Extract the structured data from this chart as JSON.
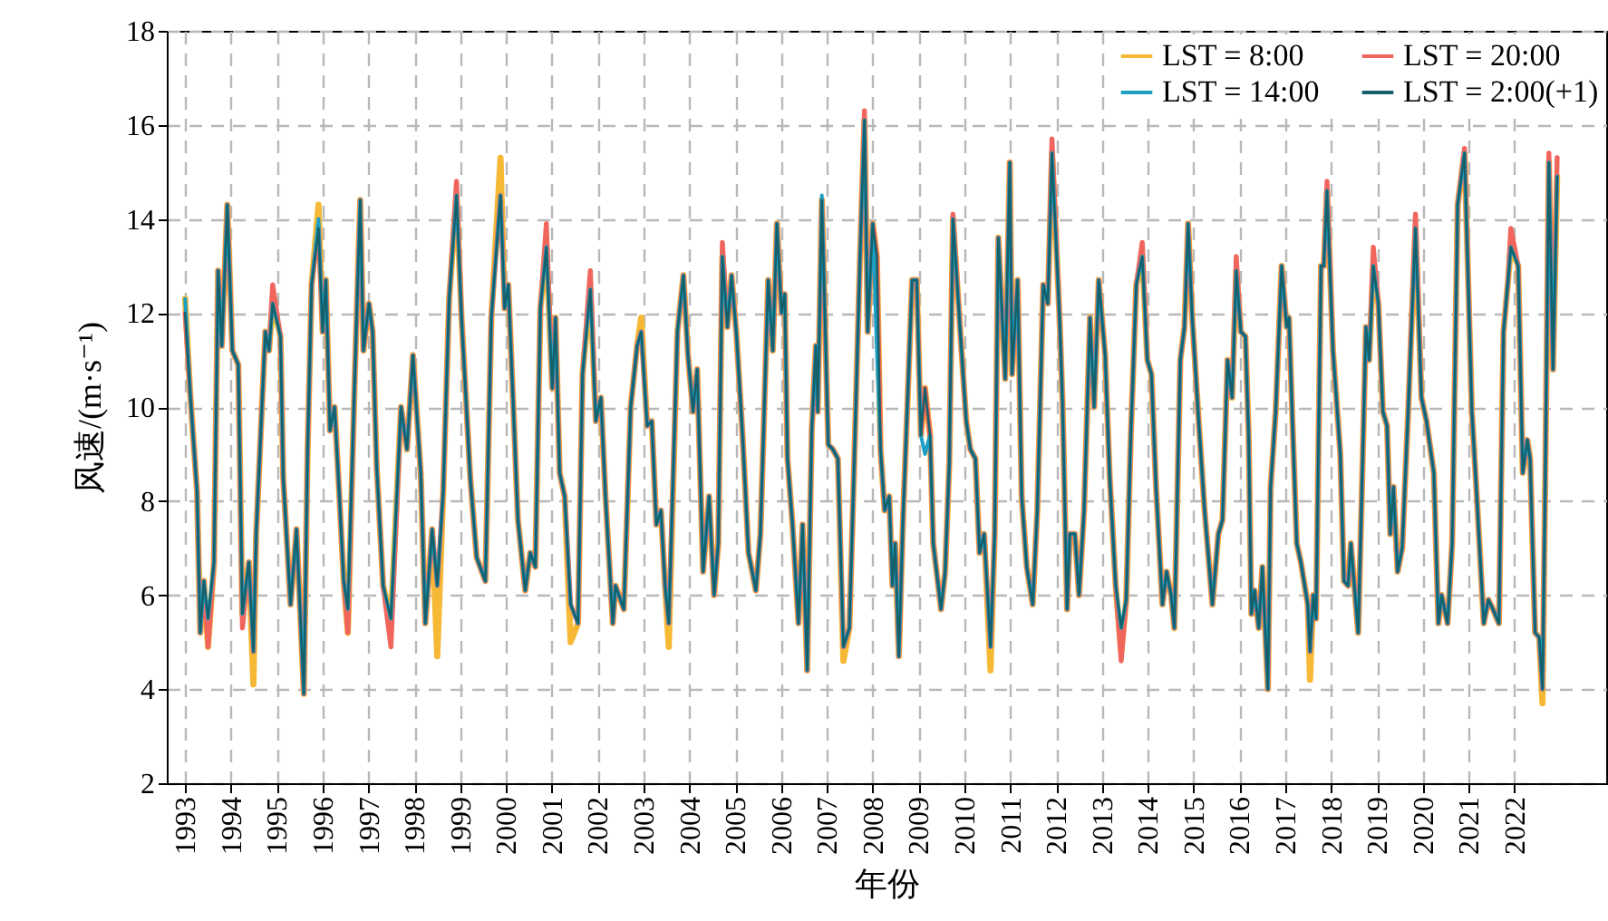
{
  "chart_data": {
    "type": "line",
    "xlabel": "年份",
    "ylabel": "风速/(m·s⁻¹)",
    "xlim": [
      1992.6,
      2024.0
    ],
    "xticks": [
      1993,
      1994,
      1995,
      1996,
      1997,
      1998,
      1999,
      2000,
      2001,
      2002,
      2003,
      2004,
      2005,
      2006,
      2007,
      2008,
      2009,
      2010,
      2011,
      2012,
      2013,
      2014,
      2015,
      2016,
      2017,
      2018,
      2019,
      2020,
      2021,
      2022
    ],
    "ylim": [
      2,
      18
    ],
    "yticks": [
      2,
      4,
      6,
      8,
      10,
      12,
      14,
      16,
      18
    ],
    "grid": true,
    "legend": "top right",
    "x": [
      1993.0,
      1993.11,
      1993.26,
      1993.33,
      1993.41,
      1993.5,
      1993.63,
      1993.72,
      1993.8,
      1993.92,
      1994.03,
      1994.16,
      1994.25,
      1994.39,
      1994.49,
      1994.55,
      1994.75,
      1994.83,
      1994.91,
      1995.08,
      1995.14,
      1995.3,
      1995.43,
      1995.59,
      1995.67,
      1995.76,
      1995.91,
      1996.0,
      1996.07,
      1996.16,
      1996.26,
      1996.36,
      1996.46,
      1996.55,
      1996.7,
      1996.82,
      1996.89,
      1997.01,
      1997.09,
      1997.18,
      1997.32,
      1997.49,
      1997.71,
      1997.84,
      1997.97,
      1998.14,
      1998.24,
      1998.39,
      1998.5,
      1998.63,
      1998.76,
      1998.92,
      1999.03,
      1999.22,
      1999.36,
      1999.55,
      1999.68,
      1999.88,
      1999.97,
      2000.05,
      2000.16,
      2000.26,
      2000.42,
      2000.53,
      2000.64,
      2000.75,
      2000.88,
      2001.01,
      2001.08,
      2001.17,
      2001.28,
      2001.41,
      2001.57,
      2001.67,
      2001.84,
      2001.96,
      2002.07,
      2002.17,
      2002.33,
      2002.39,
      2002.57,
      2002.72,
      2002.86,
      2002.95,
      2003.08,
      2003.18,
      2003.28,
      2003.38,
      2003.47,
      2003.55,
      2003.74,
      2003.87,
      2003.97,
      2004.08,
      2004.17,
      2004.3,
      2004.43,
      2004.54,
      2004.63,
      2004.72,
      2004.83,
      2004.92,
      2005.03,
      2005.16,
      2005.29,
      2005.45,
      2005.55,
      2005.72,
      2005.82,
      2005.91,
      2006.01,
      2006.08,
      2006.14,
      2006.25,
      2006.38,
      2006.47,
      2006.57,
      2006.67,
      2006.76,
      2006.8,
      2006.89,
      2007.03,
      2007.13,
      2007.24,
      2007.36,
      2007.49,
      2007.59,
      2007.72,
      2007.82,
      2007.89,
      2008.0,
      2008.09,
      2008.17,
      2008.26,
      2008.36,
      2008.43,
      2008.49,
      2008.57,
      2008.66,
      2008.86,
      2008.96,
      2009.05,
      2009.14,
      2009.25,
      2009.32,
      2009.49,
      2009.58,
      2009.67,
      2009.75,
      2009.91,
      2010.04,
      2010.13,
      2010.24,
      2010.33,
      2010.43,
      2010.57,
      2010.66,
      2010.74,
      2010.89,
      2010.99,
      2011.04,
      2011.16,
      2011.25,
      2011.36,
      2011.49,
      2011.59,
      2011.72,
      2011.82,
      2011.91,
      2012.08,
      2012.14,
      2012.24,
      2012.3,
      2012.41,
      2012.5,
      2012.61,
      2012.74,
      2012.83,
      2012.93,
      2013.07,
      2013.17,
      2013.3,
      2013.42,
      2013.53,
      2013.63,
      2013.75,
      2013.88,
      2013.99,
      2014.08,
      2014.18,
      2014.32,
      2014.41,
      2014.51,
      2014.58,
      2014.71,
      2014.8,
      2014.88,
      2014.97,
      2015.11,
      2015.24,
      2015.41,
      2015.54,
      2015.63,
      2015.74,
      2015.84,
      2015.93,
      2016.03,
      2016.13,
      2016.2,
      2016.26,
      2016.33,
      2016.42,
      2016.5,
      2016.62,
      2016.68,
      2016.79,
      2016.92,
      2017.03,
      2017.08,
      2017.16,
      2017.25,
      2017.34,
      2017.49,
      2017.54,
      2017.61,
      2017.67,
      2017.78,
      2017.84,
      2017.91,
      2018.04,
      2018.2,
      2018.28,
      2018.37,
      2018.43,
      2018.59,
      2018.67,
      2018.76,
      2018.83,
      2018.92,
      2019.03,
      2019.13,
      2019.22,
      2019.29,
      2019.36,
      2019.45,
      2019.55,
      2019.68,
      2019.84,
      2019.97,
      2020.08,
      2020.24,
      2020.34,
      2020.41,
      2020.54,
      2020.64,
      2020.76,
      2020.91,
      2021.07,
      2021.16,
      2021.33,
      2021.43,
      2021.53,
      2021.66,
      2021.76,
      2021.86,
      2021.92,
      2022.08,
      2022.18,
      2022.28,
      2022.34,
      2022.45,
      2022.54,
      2022.61,
      2022.67,
      2022.75,
      2022.84,
      2022.93
    ],
    "series": [
      {
        "name": "LST = 8:00",
        "color": "#f6b936",
        "values": [
          12.3,
          10.3,
          8.2,
          5.2,
          6.3,
          4.9,
          6.7,
          12.9,
          11.3,
          14.3,
          11.2,
          10.9,
          5.6,
          6.7,
          4.1,
          7.3,
          11.6,
          11.2,
          12.2,
          11.5,
          8.5,
          5.8,
          7.4,
          3.9,
          9.0,
          12.6,
          14.3,
          11.6,
          12.7,
          9.5,
          10.0,
          8.2,
          6.3,
          5.2,
          10.6,
          14.4,
          11.2,
          12.2,
          11.6,
          8.7,
          6.2,
          5.5,
          10.0,
          9.1,
          11.1,
          8.6,
          5.4,
          7.4,
          4.7,
          8.2,
          12.3,
          14.5,
          11.9,
          8.5,
          6.8,
          6.3,
          11.9,
          15.3,
          12.1,
          12.6,
          10.0,
          7.6,
          6.1,
          6.9,
          6.6,
          12.1,
          13.4,
          10.4,
          11.9,
          8.6,
          8.1,
          5.0,
          5.4,
          10.7,
          12.5,
          9.7,
          10.2,
          8.1,
          5.4,
          6.2,
          5.7,
          10.0,
          11.3,
          11.9,
          9.6,
          9.7,
          7.5,
          7.8,
          6.2,
          4.9,
          11.6,
          12.8,
          11.1,
          9.9,
          10.8,
          6.5,
          8.1,
          6.0,
          7.1,
          13.2,
          11.7,
          12.8,
          11.5,
          9.4,
          6.9,
          6.1,
          7.3,
          12.7,
          11.2,
          13.9,
          12.0,
          12.4,
          8.9,
          7.5,
          5.4,
          7.5,
          4.4,
          9.5,
          11.3,
          9.9,
          14.4,
          9.2,
          9.1,
          8.9,
          4.6,
          5.3,
          8.6,
          13.1,
          16.1,
          11.6,
          13.9,
          13.2,
          9.1,
          7.8,
          8.1,
          6.2,
          7.1,
          4.7,
          7.6,
          12.7,
          12.7,
          9.4,
          10.4,
          9.4,
          7.1,
          5.7,
          6.5,
          8.8,
          14.0,
          11.6,
          9.7,
          9.1,
          8.9,
          6.9,
          7.3,
          4.4,
          7.3,
          13.6,
          10.6,
          15.2,
          10.7,
          12.7,
          8.1,
          6.6,
          5.8,
          7.8,
          12.6,
          12.2,
          15.4,
          11.8,
          10.1,
          5.7,
          7.3,
          7.3,
          6.0,
          7.8,
          11.9,
          10.0,
          12.7,
          11.1,
          8.5,
          6.2,
          4.8,
          5.9,
          9.4,
          12.6,
          13.2,
          11.0,
          10.7,
          8.3,
          5.8,
          6.5,
          6.0,
          5.3,
          11.0,
          11.7,
          13.9,
          11.9,
          9.7,
          7.8,
          5.8,
          7.3,
          7.6,
          11.0,
          10.2,
          12.9,
          11.6,
          11.5,
          9.4,
          5.6,
          6.1,
          5.3,
          6.6,
          4.0,
          8.3,
          9.9,
          13.0,
          11.7,
          11.9,
          9.6,
          7.1,
          6.7,
          5.8,
          4.2,
          6.0,
          5.5,
          13.0,
          13.0,
          14.6,
          11.2,
          9.0,
          6.3,
          6.2,
          7.1,
          5.2,
          8.2,
          11.7,
          11.0,
          13.0,
          12.2,
          9.9,
          9.6,
          7.3,
          8.3,
          6.5,
          7.0,
          9.9,
          13.8,
          10.2,
          9.7,
          8.6,
          5.4,
          6.0,
          5.4,
          7.1,
          14.3,
          15.4,
          9.9,
          8.4,
          5.4,
          5.9,
          5.7,
          5.4,
          11.6,
          12.7,
          13.4,
          13.0,
          8.6,
          9.3,
          8.9,
          5.2,
          5.1,
          3.7,
          8.4,
          15.2,
          10.8,
          14.9
        ]
      },
      {
        "name": "LST = 20:00",
        "color": "#f0665c",
        "values": [
          12.0,
          10.3,
          8.2,
          5.2,
          6.3,
          4.9,
          6.7,
          12.9,
          11.3,
          14.3,
          11.2,
          10.9,
          5.3,
          6.7,
          4.8,
          7.3,
          11.6,
          11.2,
          12.6,
          11.5,
          8.5,
          5.8,
          7.4,
          3.9,
          9.0,
          12.6,
          13.8,
          11.6,
          12.7,
          9.5,
          10.0,
          8.2,
          6.3,
          5.2,
          10.6,
          14.4,
          11.2,
          12.2,
          11.6,
          8.7,
          6.2,
          4.9,
          10.0,
          9.1,
          11.1,
          8.6,
          5.4,
          7.4,
          6.2,
          8.2,
          12.3,
          14.8,
          11.9,
          8.5,
          6.8,
          6.3,
          11.9,
          14.5,
          12.1,
          12.6,
          10.0,
          7.6,
          6.1,
          6.9,
          6.6,
          12.1,
          13.9,
          10.4,
          11.9,
          8.6,
          8.1,
          5.8,
          5.4,
          10.7,
          12.9,
          9.7,
          10.2,
          8.1,
          5.4,
          6.2,
          5.7,
          10.0,
          11.3,
          11.6,
          9.6,
          9.7,
          7.5,
          7.8,
          6.2,
          5.4,
          11.6,
          12.8,
          11.1,
          9.9,
          10.8,
          6.5,
          8.1,
          6.0,
          7.1,
          13.5,
          11.7,
          12.8,
          11.5,
          9.4,
          6.9,
          6.1,
          7.3,
          12.7,
          11.2,
          13.9,
          12.0,
          12.4,
          8.9,
          7.5,
          5.4,
          7.5,
          4.4,
          9.5,
          11.3,
          9.9,
          14.4,
          9.2,
          9.1,
          8.9,
          4.9,
          5.3,
          8.6,
          13.1,
          16.3,
          11.6,
          13.9,
          13.2,
          9.1,
          7.8,
          8.1,
          6.2,
          7.1,
          4.7,
          7.6,
          12.7,
          12.7,
          9.4,
          10.4,
          9.4,
          7.1,
          5.7,
          6.5,
          8.8,
          14.1,
          11.6,
          9.7,
          9.1,
          8.9,
          6.9,
          7.3,
          4.9,
          7.3,
          13.6,
          10.6,
          15.2,
          10.7,
          12.7,
          8.1,
          6.6,
          5.8,
          7.8,
          12.6,
          12.2,
          15.7,
          11.8,
          10.1,
          5.7,
          7.3,
          7.3,
          6.0,
          7.8,
          11.9,
          10.0,
          12.7,
          11.1,
          8.5,
          6.2,
          4.6,
          5.9,
          9.4,
          12.6,
          13.5,
          11.0,
          10.7,
          8.3,
          5.8,
          6.5,
          6.0,
          5.3,
          11.0,
          11.7,
          13.9,
          11.9,
          9.7,
          7.8,
          5.8,
          7.3,
          7.6,
          11.0,
          10.2,
          13.2,
          11.6,
          11.5,
          9.4,
          5.6,
          6.1,
          5.3,
          6.6,
          4.0,
          8.3,
          9.9,
          13.0,
          11.7,
          11.9,
          9.6,
          7.1,
          6.7,
          5.8,
          4.8,
          6.0,
          5.5,
          13.0,
          13.0,
          14.8,
          11.2,
          9.0,
          6.3,
          6.2,
          7.1,
          5.2,
          8.2,
          11.7,
          11.0,
          13.4,
          12.2,
          9.9,
          9.6,
          7.3,
          8.3,
          6.5,
          7.0,
          9.9,
          14.1,
          10.2,
          9.7,
          8.6,
          5.4,
          6.0,
          5.4,
          7.1,
          14.3,
          15.5,
          9.9,
          8.4,
          5.4,
          5.9,
          5.7,
          5.4,
          11.6,
          12.7,
          13.8,
          13.0,
          8.6,
          9.3,
          8.9,
          5.2,
          5.1,
          4.0,
          8.4,
          15.4,
          10.8,
          15.3
        ]
      },
      {
        "name": "LST = 14:00",
        "color": "#1e9fc4",
        "values": [
          12.3,
          10.3,
          8.2,
          5.2,
          6.3,
          5.5,
          6.7,
          12.9,
          11.3,
          14.3,
          11.2,
          10.9,
          5.6,
          6.7,
          4.8,
          7.3,
          11.6,
          11.2,
          12.2,
          11.5,
          8.5,
          5.8,
          7.4,
          3.9,
          9.0,
          12.6,
          14.0,
          11.6,
          12.7,
          9.5,
          10.0,
          8.2,
          6.3,
          5.7,
          10.6,
          14.4,
          11.2,
          12.2,
          11.6,
          8.7,
          6.2,
          5.5,
          10.0,
          9.1,
          11.1,
          8.6,
          5.4,
          7.4,
          6.2,
          8.2,
          12.3,
          14.5,
          11.9,
          8.5,
          6.8,
          6.3,
          11.9,
          14.5,
          12.1,
          12.6,
          10.0,
          7.6,
          6.1,
          6.9,
          6.6,
          12.1,
          13.4,
          10.4,
          11.9,
          8.6,
          8.1,
          5.8,
          5.4,
          10.7,
          12.5,
          9.7,
          10.2,
          8.1,
          5.4,
          6.2,
          5.7,
          10.0,
          11.3,
          11.6,
          9.6,
          9.7,
          7.5,
          7.8,
          6.2,
          5.4,
          11.6,
          12.8,
          11.1,
          9.9,
          10.8,
          6.5,
          8.1,
          6.0,
          7.1,
          13.2,
          11.7,
          12.8,
          11.5,
          9.4,
          6.9,
          6.1,
          7.3,
          12.7,
          11.2,
          13.9,
          12.0,
          12.4,
          8.9,
          7.5,
          5.4,
          7.5,
          4.4,
          9.5,
          11.3,
          9.9,
          14.5,
          9.2,
          9.1,
          8.9,
          4.9,
          5.3,
          8.6,
          13.1,
          16.1,
          11.6,
          13.9,
          11.2,
          9.1,
          7.8,
          8.1,
          6.2,
          7.1,
          4.7,
          7.6,
          12.7,
          12.7,
          9.4,
          9.0,
          9.4,
          7.1,
          5.7,
          6.5,
          8.8,
          14.0,
          11.6,
          9.7,
          9.1,
          8.9,
          6.9,
          7.3,
          4.9,
          7.3,
          13.6,
          10.6,
          15.2,
          10.7,
          12.7,
          8.1,
          6.6,
          5.8,
          7.8,
          12.6,
          12.2,
          15.4,
          11.8,
          10.1,
          5.7,
          7.3,
          7.3,
          6.0,
          7.8,
          11.9,
          10.0,
          12.7,
          11.1,
          8.5,
          6.2,
          5.3,
          5.9,
          9.4,
          12.6,
          13.2,
          11.0,
          10.7,
          8.3,
          5.8,
          6.5,
          6.0,
          5.3,
          11.0,
          11.7,
          13.9,
          11.9,
          9.7,
          7.8,
          5.8,
          7.3,
          7.6,
          11.0,
          10.2,
          12.9,
          11.6,
          11.5,
          9.4,
          5.6,
          6.1,
          5.3,
          6.6,
          4.0,
          8.3,
          9.9,
          13.0,
          11.7,
          11.9,
          9.6,
          7.1,
          6.7,
          5.8,
          4.8,
          6.0,
          5.5,
          13.0,
          13.0,
          14.6,
          11.2,
          9.0,
          6.3,
          6.2,
          7.1,
          5.2,
          8.2,
          11.7,
          11.0,
          13.0,
          12.2,
          9.9,
          9.6,
          7.3,
          8.3,
          6.5,
          7.0,
          9.9,
          13.8,
          10.2,
          9.7,
          8.6,
          5.4,
          6.0,
          5.4,
          7.1,
          14.3,
          15.4,
          9.9,
          8.4,
          5.4,
          5.9,
          5.7,
          5.4,
          11.6,
          12.7,
          13.4,
          13.0,
          8.6,
          9.3,
          8.9,
          5.2,
          5.1,
          4.0,
          8.4,
          15.2,
          10.8,
          14.9
        ]
      },
      {
        "name": "LST = 2:00(+1)",
        "color": "#15606b",
        "values": [
          12.0,
          10.3,
          8.2,
          5.2,
          6.3,
          5.5,
          6.7,
          12.9,
          11.3,
          14.3,
          11.2,
          10.9,
          5.6,
          6.7,
          4.8,
          7.3,
          11.6,
          11.2,
          12.2,
          11.5,
          8.5,
          5.8,
          7.4,
          3.9,
          9.0,
          12.6,
          13.8,
          11.6,
          12.7,
          9.5,
          10.0,
          8.2,
          6.3,
          5.7,
          10.6,
          14.4,
          11.2,
          12.2,
          11.6,
          8.7,
          6.2,
          5.5,
          10.0,
          9.1,
          11.1,
          8.6,
          5.4,
          7.4,
          6.2,
          8.2,
          12.3,
          14.5,
          11.9,
          8.5,
          6.8,
          6.3,
          11.9,
          14.5,
          12.1,
          12.6,
          10.0,
          7.6,
          6.1,
          6.9,
          6.6,
          12.1,
          13.4,
          10.4,
          11.9,
          8.6,
          8.1,
          5.8,
          5.4,
          10.7,
          12.5,
          9.7,
          10.2,
          8.1,
          5.4,
          6.2,
          5.7,
          10.0,
          11.3,
          11.6,
          9.6,
          9.7,
          7.5,
          7.8,
          6.2,
          5.4,
          11.6,
          12.8,
          11.1,
          9.9,
          10.8,
          6.5,
          8.1,
          6.0,
          7.1,
          13.2,
          11.7,
          12.8,
          11.5,
          9.4,
          6.9,
          6.1,
          7.3,
          12.7,
          11.2,
          13.9,
          12.0,
          12.4,
          8.9,
          7.5,
          5.4,
          7.5,
          4.4,
          9.5,
          11.3,
          9.9,
          14.4,
          9.2,
          9.1,
          8.9,
          4.9,
          5.3,
          8.6,
          13.1,
          16.1,
          11.6,
          13.9,
          13.2,
          9.1,
          7.8,
          8.1,
          6.2,
          7.1,
          4.7,
          7.6,
          12.7,
          12.7,
          9.4,
          10.4,
          9.4,
          7.1,
          5.7,
          6.5,
          8.8,
          14.0,
          11.6,
          9.7,
          9.1,
          8.9,
          6.9,
          7.3,
          4.9,
          7.3,
          13.6,
          10.6,
          15.2,
          10.7,
          12.7,
          8.1,
          6.6,
          5.8,
          7.8,
          12.6,
          12.2,
          15.4,
          11.8,
          10.1,
          5.7,
          7.3,
          7.3,
          6.0,
          7.8,
          11.9,
          10.0,
          12.7,
          11.1,
          8.5,
          6.2,
          5.3,
          5.9,
          9.4,
          12.6,
          13.2,
          11.0,
          10.7,
          8.3,
          5.8,
          6.5,
          6.0,
          5.3,
          11.0,
          11.7,
          13.9,
          11.9,
          9.7,
          7.8,
          5.8,
          7.3,
          7.6,
          11.0,
          10.2,
          12.9,
          11.6,
          11.5,
          9.4,
          5.6,
          6.1,
          5.3,
          6.6,
          4.0,
          8.3,
          9.9,
          13.0,
          11.7,
          11.9,
          9.6,
          7.1,
          6.7,
          5.8,
          4.8,
          6.0,
          5.5,
          13.0,
          13.0,
          14.6,
          11.2,
          9.0,
          6.3,
          6.2,
          7.1,
          5.2,
          8.2,
          11.7,
          11.0,
          13.0,
          12.2,
          9.9,
          9.6,
          7.3,
          8.3,
          6.5,
          7.0,
          9.9,
          13.8,
          10.2,
          9.7,
          8.6,
          5.4,
          6.0,
          5.4,
          7.1,
          14.3,
          15.4,
          9.9,
          8.4,
          5.4,
          5.9,
          5.7,
          5.4,
          11.6,
          12.7,
          13.4,
          13.0,
          8.6,
          9.3,
          8.9,
          5.2,
          5.1,
          4.0,
          8.4,
          15.2,
          10.8,
          14.9
        ]
      }
    ]
  }
}
